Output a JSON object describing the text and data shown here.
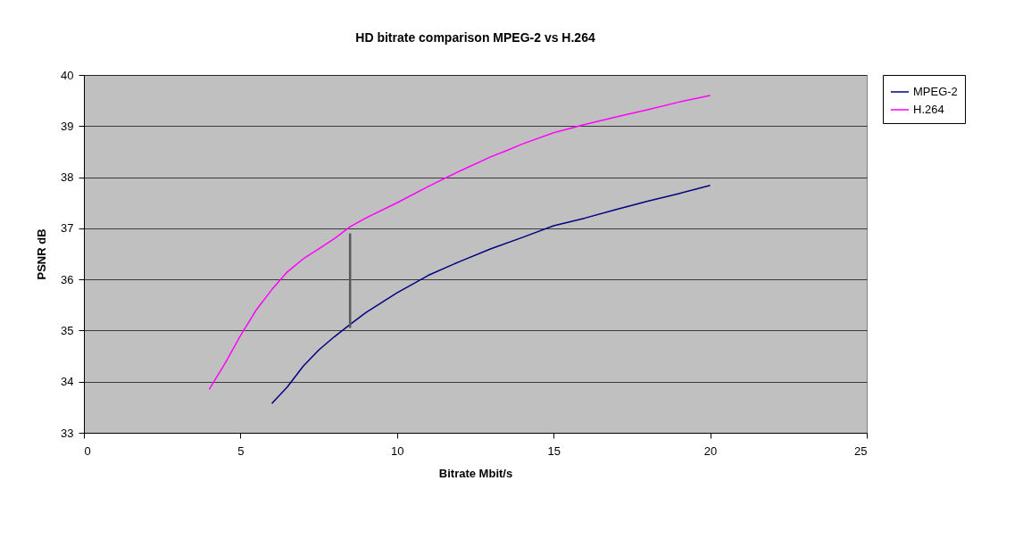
{
  "chart_data": {
    "type": "line",
    "title": "HD bitrate comparison MPEG-2 vs H.264",
    "xlabel": "Bitrate Mbit/s",
    "ylabel": "PSNR dB",
    "xlim": [
      0,
      25
    ],
    "xticks": [
      0,
      5,
      10,
      15,
      20,
      25
    ],
    "ylim": [
      33,
      40
    ],
    "yticks": [
      33,
      34,
      35,
      36,
      37,
      38,
      39,
      40
    ],
    "grid": "y",
    "legend": "right",
    "series": [
      {
        "name": "MPEG-2",
        "color": "#000080",
        "x": [
          6,
          6.5,
          7,
          7.5,
          8,
          8.5,
          9,
          10,
          11,
          12,
          13,
          14,
          15,
          16,
          17,
          18,
          19,
          20
        ],
        "values": [
          33.57,
          33.9,
          34.3,
          34.62,
          34.88,
          35.12,
          35.35,
          35.74,
          36.08,
          36.35,
          36.6,
          36.82,
          37.05,
          37.2,
          37.37,
          37.53,
          37.68,
          37.84
        ]
      },
      {
        "name": "H.264",
        "color": "#ff00ff",
        "x": [
          4,
          4.5,
          5,
          5.5,
          6,
          6.5,
          7,
          7.5,
          8,
          8.5,
          9,
          10,
          11,
          12,
          13,
          13.5,
          14,
          15,
          16,
          17,
          18,
          19,
          20
        ],
        "values": [
          33.85,
          34.35,
          34.9,
          35.4,
          35.8,
          36.15,
          36.4,
          36.6,
          36.8,
          37.03,
          37.2,
          37.5,
          37.82,
          38.12,
          38.4,
          38.52,
          38.65,
          38.87,
          39.03,
          39.18,
          39.32,
          39.47,
          39.6
        ]
      },
      {
        "type": "line",
        "color": "#595959",
        "x": [
          8.5,
          8.5
        ],
        "values": [
          35.05,
          36.9
        ]
      }
    ]
  }
}
